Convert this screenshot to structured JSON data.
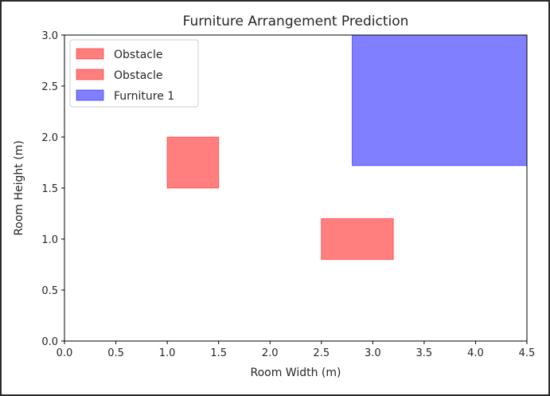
{
  "chart_data": {
    "type": "rectangles",
    "title": "Furniture Arrangement Prediction",
    "xlabel": "Room Width (m)",
    "ylabel": "Room Height (m)",
    "xlim": [
      0,
      4.5
    ],
    "ylim": [
      0,
      3.0
    ],
    "xticks": [
      "0.0",
      "0.5",
      "1.0",
      "1.5",
      "2.0",
      "2.5",
      "3.0",
      "3.5",
      "4.0",
      "4.5"
    ],
    "yticks": [
      "0.0",
      "0.5",
      "1.0",
      "1.5",
      "2.0",
      "2.5",
      "3.0"
    ],
    "grid": false,
    "legend_position": "top-left",
    "rectangles": [
      {
        "label": "Obstacle",
        "x": 1.0,
        "y": 1.5,
        "width": 0.5,
        "height": 0.5,
        "color": "#ff0000",
        "alpha": 0.5
      },
      {
        "label": "Obstacle",
        "x": 2.5,
        "y": 0.8,
        "width": 0.7,
        "height": 0.4,
        "color": "#ff0000",
        "alpha": 0.5
      },
      {
        "label": "Furniture 1",
        "x": 2.8,
        "y": 1.72,
        "width": 1.7,
        "height": 1.28,
        "color": "#0000ff",
        "alpha": 0.5
      }
    ]
  }
}
